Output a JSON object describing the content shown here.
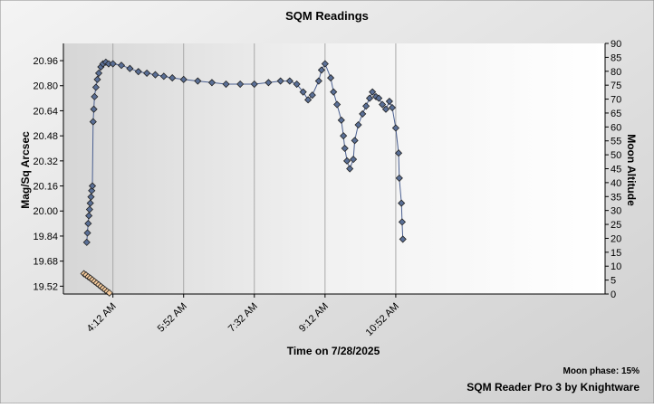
{
  "chart_data": {
    "type": "line",
    "title": "SQM Readings",
    "xlabel": "Time on 7/28/2025",
    "ylabel": "Mag/Sq Arcsec",
    "y2label": "Moon Altitude",
    "footer_note": "Moon phase: 15%",
    "footer_brand": "SQM Reader Pro 3 by Knightware",
    "xlim": [
      "3:02 AM",
      "3:48 PM"
    ],
    "xticks": [
      "4:12 AM",
      "5:52 AM",
      "7:32 AM",
      "9:12 AM",
      "10:52 AM"
    ],
    "ylim": [
      19.47,
      21.07
    ],
    "yticks": [
      19.52,
      19.68,
      19.84,
      {
        "value": 20,
        "label": "20.00"
      },
      20.16,
      20.32,
      20.48,
      20.64,
      {
        "value": 20.8,
        "label": "20.80"
      },
      20.96
    ],
    "y2lim": [
      0,
      90
    ],
    "y2ticks": [
      0,
      5,
      10,
      15,
      20,
      25,
      30,
      35,
      40,
      45,
      50,
      55,
      60,
      65,
      70,
      75,
      80,
      85,
      90
    ],
    "grid": true,
    "series": [
      {
        "color": "#5a6f96",
        "line_color": "#4a5f90",
        "axis": "y",
        "x": [
          "3:35 AM",
          "3:36 AM",
          "3:37 AM",
          "3:38 AM",
          "3:39 AM",
          "3:40 AM",
          "3:41 AM",
          "3:42 AM",
          "3:43 AM",
          "3:44 AM",
          "3:45 AM",
          "3:46 AM",
          "3:48 AM",
          "3:50 AM",
          "3:52 AM",
          "3:55 AM",
          "3:58 AM",
          "4:02 AM",
          "4:06 AM",
          "4:12 AM",
          "4:24 AM",
          "4:36 AM",
          "4:48 AM",
          "5:00 AM",
          "5:12 AM",
          "5:24 AM",
          "5:36 AM",
          "5:52 AM",
          "6:12 AM",
          "6:32 AM",
          "6:52 AM",
          "7:12 AM",
          "7:32 AM",
          "7:52 AM",
          "8:09 AM",
          "8:22 AM",
          "8:32 AM",
          "8:41 AM",
          "8:48 AM",
          "8:54 AM",
          "9:03 AM",
          "9:07 AM",
          "9:12 AM",
          "9:20 AM",
          "9:24 AM",
          "9:29 AM",
          "9:35 AM",
          "9:38 AM",
          "9:40 AM",
          "9:43 AM",
          "9:47 AM",
          "9:52 AM",
          "9:54 AM",
          "9:59 AM",
          "10:05 AM",
          "10:10 AM",
          "10:15 AM",
          "10:19 AM",
          "10:24 AM",
          "10:28 AM",
          "10:33 AM",
          "10:38 AM",
          "10:43 AM",
          "10:47 AM",
          "10:52 AM",
          "10:56 AM",
          "10:57 AM",
          "11:00 AM",
          "11:01 AM",
          "11:02 AM"
        ],
        "values": [
          19.8,
          19.86,
          19.92,
          19.97,
          20.01,
          20.05,
          20.09,
          20.13,
          20.16,
          20.57,
          20.65,
          20.73,
          20.79,
          20.84,
          20.88,
          20.92,
          20.94,
          20.95,
          20.94,
          20.94,
          20.93,
          20.91,
          20.89,
          20.88,
          20.87,
          20.86,
          20.85,
          20.84,
          20.83,
          20.82,
          20.81,
          20.81,
          20.81,
          20.82,
          20.83,
          20.83,
          20.81,
          20.76,
          20.71,
          20.74,
          20.83,
          20.9,
          20.94,
          20.85,
          20.76,
          20.68,
          20.58,
          20.48,
          20.4,
          20.32,
          20.27,
          20.33,
          20.45,
          20.55,
          20.62,
          20.67,
          20.72,
          20.76,
          20.73,
          20.72,
          20.68,
          20.65,
          20.7,
          20.66,
          20.53,
          20.37,
          20.21,
          20.05,
          19.93,
          19.82
        ]
      },
      {
        "color": "#f4c99a",
        "axis": "y2",
        "x": [
          "3:31 AM",
          "3:34 AM",
          "3:37 AM",
          "3:40 AM",
          "3:43 AM",
          "3:46 AM",
          "3:49 AM",
          "3:52 AM",
          "3:55 AM",
          "3:58 AM",
          "4:01 AM",
          "4:04 AM",
          "4:07 AM"
        ],
        "values": [
          7.3,
          6.8,
          6.2,
          5.7,
          5.1,
          4.5,
          3.9,
          3.3,
          2.7,
          2.1,
          1.5,
          0.9,
          0.4
        ]
      }
    ]
  }
}
